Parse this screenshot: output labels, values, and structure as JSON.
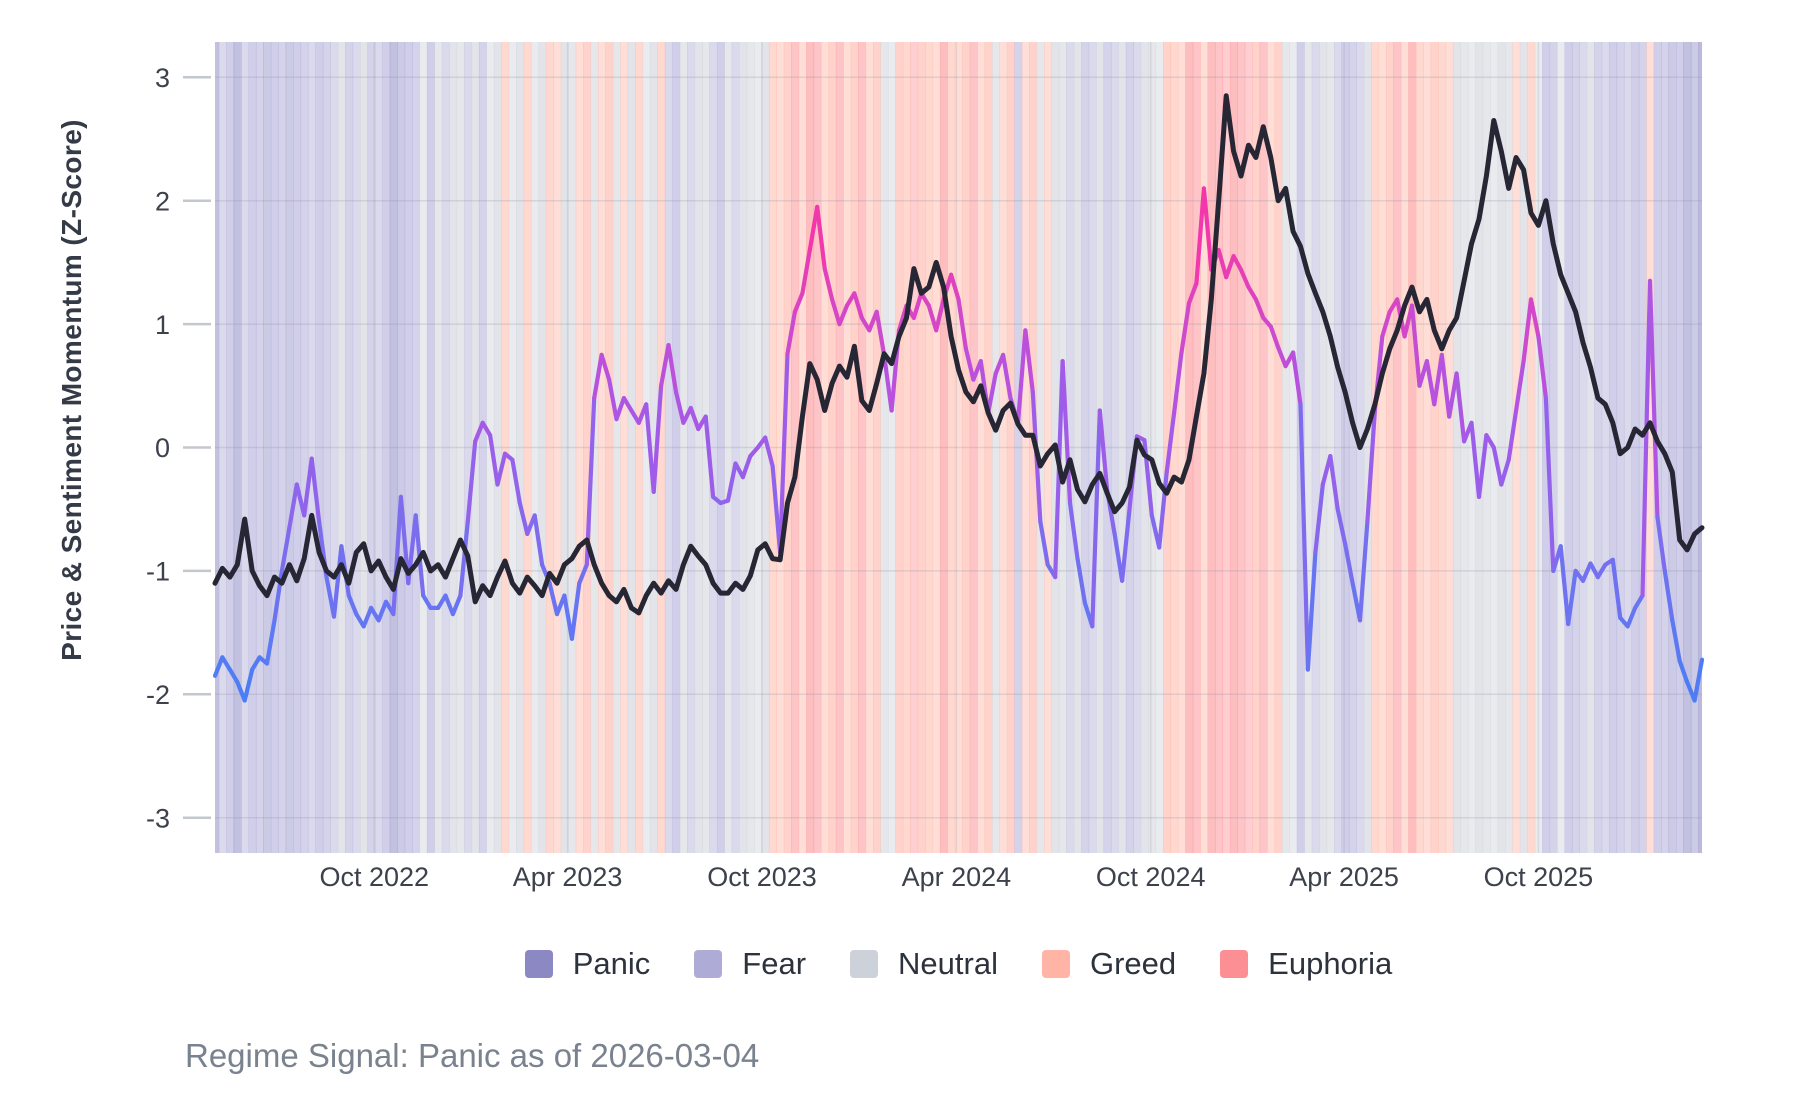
{
  "page": {
    "background": "#ffffff"
  },
  "y_axis": {
    "label": "Price & Sentiment Momentum (Z-Score)",
    "ticks": [
      3,
      2,
      1,
      0,
      -1,
      -2,
      -3
    ]
  },
  "x_axis": {
    "ticks": [
      {
        "label": "Oct 2022",
        "date": "2022-10-01"
      },
      {
        "label": "Apr 2023",
        "date": "2023-04-01"
      },
      {
        "label": "Oct 2023",
        "date": "2023-10-01"
      },
      {
        "label": "Apr 2024",
        "date": "2024-04-01"
      },
      {
        "label": "Oct 2024",
        "date": "2024-10-01"
      },
      {
        "label": "Apr 2025",
        "date": "2025-04-01"
      },
      {
        "label": "Oct 2025",
        "date": "2025-10-01"
      }
    ]
  },
  "legend": {
    "items": [
      {
        "key": "P",
        "label": "Panic",
        "color": "#8b88c3"
      },
      {
        "key": "F",
        "label": "Fear",
        "color": "#aeabd7"
      },
      {
        "key": "N",
        "label": "Neutral",
        "color": "#cdd1d9"
      },
      {
        "key": "G",
        "label": "Greed",
        "color": "#ffb4a5"
      },
      {
        "key": "E",
        "label": "Euphoria",
        "color": "#fc8f93"
      }
    ]
  },
  "caption": {
    "text": "Regime Signal: Panic as of 2026-03-04"
  },
  "colors": {
    "price_line": "#262634",
    "tick_text": "#3c414b",
    "grid": "#8d95a3",
    "tick_dash": "#c3c8cf",
    "sentiment_scale": [
      {
        "v": -2.3,
        "c": "#3f80f7"
      },
      {
        "v": -1.6,
        "c": "#5a7af3"
      },
      {
        "v": -1.0,
        "c": "#7470f0"
      },
      {
        "v": -0.4,
        "c": "#8f64ec"
      },
      {
        "v": 0.1,
        "c": "#a35ae8"
      },
      {
        "v": 0.6,
        "c": "#b951dd"
      },
      {
        "v": 1.1,
        "c": "#d646c6"
      },
      {
        "v": 1.6,
        "c": "#ef3aae"
      },
      {
        "v": 2.2,
        "c": "#fd2ea2"
      }
    ]
  },
  "chart_data": {
    "type": "line",
    "title": "",
    "xlabel": "",
    "ylabel": "Price & Sentiment Momentum (Z-Score)",
    "ylim": [
      -3.29,
      3.29
    ],
    "grid": true,
    "legend_position": "bottom-center",
    "x_start": "2022-05-04",
    "x_end": "2026-03-04",
    "x_step_days": 7,
    "n_points": 201,
    "series": [
      {
        "name": "price_momentum",
        "style": "solid_dark",
        "values": [
          -1.1,
          -0.98,
          -1.05,
          -0.95,
          -0.58,
          -1.0,
          -1.12,
          -1.2,
          -1.05,
          -1.1,
          -0.95,
          -1.08,
          -0.9,
          -0.55,
          -0.85,
          -1.0,
          -1.05,
          -0.95,
          -1.1,
          -0.85,
          -0.78,
          -1.0,
          -0.92,
          -1.05,
          -1.15,
          -0.9,
          -1.02,
          -0.95,
          -0.85,
          -1.0,
          -0.95,
          -1.05,
          -0.9,
          -0.75,
          -0.88,
          -1.25,
          -1.12,
          -1.2,
          -1.05,
          -0.92,
          -1.1,
          -1.18,
          -1.05,
          -1.12,
          -1.2,
          -1.02,
          -1.1,
          -0.95,
          -0.9,
          -0.8,
          -0.75,
          -0.95,
          -1.1,
          -1.2,
          -1.25,
          -1.15,
          -1.3,
          -1.34,
          -1.2,
          -1.1,
          -1.18,
          -1.08,
          -1.15,
          -0.95,
          -0.8,
          -0.88,
          -0.95,
          -1.1,
          -1.18,
          -1.18,
          -1.1,
          -1.15,
          -1.04,
          -0.83,
          -0.78,
          -0.9,
          -0.91,
          -0.45,
          -0.24,
          0.25,
          0.68,
          0.55,
          0.3,
          0.52,
          0.66,
          0.57,
          0.82,
          0.38,
          0.3,
          0.52,
          0.76,
          0.68,
          0.9,
          1.05,
          1.45,
          1.25,
          1.3,
          1.5,
          1.3,
          0.9,
          0.63,
          0.45,
          0.37,
          0.5,
          0.28,
          0.14,
          0.3,
          0.36,
          0.19,
          0.1,
          0.1,
          -0.15,
          -0.05,
          0.02,
          -0.28,
          -0.1,
          -0.34,
          -0.44,
          -0.3,
          -0.21,
          -0.37,
          -0.52,
          -0.45,
          -0.32,
          0.06,
          -0.06,
          -0.1,
          -0.29,
          -0.37,
          -0.24,
          -0.28,
          -0.1,
          0.25,
          0.6,
          1.2,
          2.0,
          2.85,
          2.4,
          2.2,
          2.45,
          2.35,
          2.6,
          2.35,
          2.0,
          2.1,
          1.75,
          1.63,
          1.41,
          1.25,
          1.1,
          0.9,
          0.65,
          0.45,
          0.2,
          0.0,
          0.15,
          0.35,
          0.6,
          0.8,
          0.95,
          1.15,
          1.3,
          1.1,
          1.2,
          0.95,
          0.8,
          0.95,
          1.05,
          1.35,
          1.65,
          1.85,
          2.2,
          2.65,
          2.4,
          2.1,
          2.35,
          2.25,
          1.9,
          1.8,
          2.0,
          1.65,
          1.4,
          1.25,
          1.1,
          0.85,
          0.65,
          0.4,
          0.35,
          0.2,
          -0.05,
          0.0,
          0.15,
          0.1,
          0.2,
          0.05,
          -0.05,
          -0.2,
          -0.75,
          -0.83,
          -0.7,
          -0.65
        ]
      },
      {
        "name": "sentiment_momentum",
        "style": "value_colored",
        "values": [
          -1.85,
          -1.7,
          -1.8,
          -1.9,
          -2.05,
          -1.8,
          -1.7,
          -1.75,
          -1.4,
          -1.0,
          -0.65,
          -0.3,
          -0.55,
          -0.09,
          -0.6,
          -1.05,
          -1.37,
          -0.8,
          -1.2,
          -1.35,
          -1.45,
          -1.3,
          -1.4,
          -1.25,
          -1.35,
          -0.4,
          -1.1,
          -0.55,
          -1.2,
          -1.3,
          -1.3,
          -1.2,
          -1.35,
          -1.2,
          -0.6,
          0.05,
          0.2,
          0.1,
          -0.3,
          -0.05,
          -0.1,
          -0.45,
          -0.7,
          -0.55,
          -0.95,
          -1.1,
          -1.35,
          -1.2,
          -1.55,
          -1.1,
          -0.95,
          0.4,
          0.75,
          0.55,
          0.23,
          0.4,
          0.3,
          0.2,
          0.35,
          -0.36,
          0.5,
          0.83,
          0.45,
          0.2,
          0.32,
          0.15,
          0.25,
          -0.4,
          -0.45,
          -0.43,
          -0.13,
          -0.24,
          -0.07,
          0.0,
          0.08,
          -0.15,
          -0.85,
          0.76,
          1.1,
          1.25,
          1.6,
          1.95,
          1.45,
          1.2,
          1.0,
          1.15,
          1.25,
          1.05,
          0.95,
          1.1,
          0.75,
          0.3,
          0.95,
          1.15,
          1.05,
          1.25,
          1.15,
          0.95,
          1.2,
          1.4,
          1.2,
          0.8,
          0.55,
          0.7,
          0.28,
          0.6,
          0.75,
          0.4,
          0.2,
          0.95,
          0.45,
          -0.6,
          -0.95,
          -1.05,
          0.7,
          -0.45,
          -0.9,
          -1.26,
          -1.45,
          0.3,
          -0.35,
          -0.7,
          -1.08,
          -0.5,
          0.09,
          0.06,
          -0.55,
          -0.81,
          -0.2,
          0.28,
          0.77,
          1.17,
          1.33,
          2.1,
          1.44,
          1.6,
          1.38,
          1.55,
          1.44,
          1.3,
          1.2,
          1.05,
          0.98,
          0.81,
          0.66,
          0.77,
          0.35,
          -1.8,
          -0.85,
          -0.3,
          -0.07,
          -0.5,
          -0.78,
          -1.1,
          -1.4,
          -0.6,
          0.3,
          0.9,
          1.1,
          1.2,
          0.9,
          1.15,
          0.5,
          0.7,
          0.35,
          0.75,
          0.25,
          0.6,
          0.05,
          0.2,
          -0.4,
          0.1,
          0.0,
          -0.3,
          -0.1,
          0.3,
          0.7,
          1.2,
          0.9,
          0.4,
          -1.0,
          -0.8,
          -1.43,
          -1.0,
          -1.08,
          -0.94,
          -1.05,
          -0.95,
          -0.91,
          -1.38,
          -1.45,
          -1.3,
          -1.2,
          1.35,
          -0.56,
          -1.0,
          -1.4,
          -1.73,
          -1.9,
          -2.05,
          -1.72
        ]
      }
    ],
    "regime_bands": {
      "note": "one regime code per weekly sample; P=Panic F=Fear N=Neutral G=Greed E=Euphoria",
      "codes": "PFFPFFFPFFPFFFFFFNFFNFFFPPFFNFNFNNFNFNNGNNGNNGGNNGGNGGNGNGNNGFFNFNNFFNFNNNNGGGEGEEGGEGGEGGNNGGEGGGEGGGEGGNGGFGGNGNNFNFFNFFNFFNNNGGGEEGEEEEEEGEGGNNFNFNNFFFFNGGGEGEGGGGGNNNNNNNNGNGNFFNFFFNFFFFFFFGFFPFPPP",
      "current_regime": "Panic",
      "as_of": "2026-03-04"
    }
  }
}
